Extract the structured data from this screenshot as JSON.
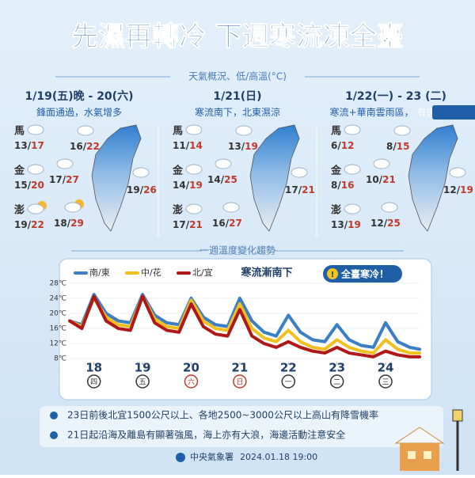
{
  "header": {
    "title": "先濕再轉冷 下週寒流凍全臺",
    "subtitle": "天氣概況、低/高溫(°C)"
  },
  "temp_separator": "/",
  "panels": [
    {
      "date": "1/19(五)晚 - 20(六)",
      "description": "鋒面通過，水氣增多",
      "islands": [
        {
          "name": "馬",
          "low": 13,
          "high": 17
        },
        {
          "name": "金",
          "low": 15,
          "high": 20
        },
        {
          "name": "澎",
          "low": 19,
          "high": 22
        }
      ],
      "map_temps": [
        {
          "low": 16,
          "high": 22
        },
        {
          "low": 17,
          "high": 27
        },
        {
          "low": 19,
          "high": 26
        },
        {
          "low": 18,
          "high": 29
        }
      ]
    },
    {
      "date": "1/21(日)",
      "description": "寒流南下，北東濕涼",
      "islands": [
        {
          "name": "馬",
          "low": 11,
          "high": 14
        },
        {
          "name": "金",
          "low": 14,
          "high": 19
        },
        {
          "name": "澎",
          "low": 17,
          "high": 21
        }
      ],
      "map_temps": [
        {
          "low": 13,
          "high": 19
        },
        {
          "low": 14,
          "high": 25
        },
        {
          "low": 17,
          "high": 21
        },
        {
          "low": 16,
          "high": 27
        }
      ]
    },
    {
      "date": "1/22(一) - 23 (二)",
      "description": "寒流+華南雲雨區，",
      "highlight": "有感轉冷",
      "highlight_suffix": "!",
      "islands": [
        {
          "name": "馬",
          "low": 6,
          "high": 12
        },
        {
          "name": "金",
          "low": 8,
          "high": 16
        },
        {
          "name": "澎",
          "low": 13,
          "high": 19
        }
      ],
      "map_temps": [
        {
          "low": 8,
          "high": 15
        },
        {
          "low": 10,
          "high": 21
        },
        {
          "low": 12,
          "high": 19
        },
        {
          "low": 12,
          "high": 25
        }
      ]
    }
  ],
  "chart_data": {
    "type": "line",
    "section_title": "一週溫度變化趨勢",
    "title": "寒流漸南下",
    "badge": "全臺寒冷！",
    "badge_icon": "!",
    "x": [
      17.5,
      17.75,
      18,
      18.25,
      18.5,
      18.75,
      19,
      19.25,
      19.5,
      19.75,
      20,
      20.25,
      20.5,
      20.75,
      21,
      21.25,
      21.5,
      21.75,
      22,
      22.25,
      22.5,
      22.75,
      23,
      23.25,
      23.5,
      23.75,
      24,
      24.25,
      24.5,
      24.7
    ],
    "xlim": [
      17.5,
      24.7
    ],
    "xticks": [
      18,
      19,
      20,
      21,
      22,
      23,
      24
    ],
    "weekdays": [
      {
        "label": "四",
        "color": "#333333"
      },
      {
        "label": "五",
        "color": "#333333"
      },
      {
        "label": "六",
        "color": "#c0392b"
      },
      {
        "label": "日",
        "color": "#c0392b"
      },
      {
        "label": "一",
        "color": "#333333"
      },
      {
        "label": "二",
        "color": "#333333"
      },
      {
        "label": "三",
        "color": "#333333"
      }
    ],
    "ylim": [
      7,
      29
    ],
    "yticks": [
      {
        "value": 8,
        "label": "8℃"
      },
      {
        "value": 12,
        "label": "12℃"
      },
      {
        "value": 16,
        "label": "16℃"
      },
      {
        "value": 20,
        "label": "20℃"
      },
      {
        "value": 24,
        "label": "24℃"
      },
      {
        "value": 28,
        "label": "28℃"
      }
    ],
    "grid": true,
    "series": [
      {
        "name": "南/東",
        "color": "#3a7fc4",
        "values": [
          18,
          17,
          25,
          20,
          18,
          17.5,
          25,
          19.5,
          17.5,
          17,
          24,
          19,
          17,
          16.5,
          24,
          18,
          15,
          14,
          19.5,
          15,
          13,
          12.5,
          17,
          13,
          11.5,
          11,
          17.5,
          12.5,
          11,
          10.5
        ]
      },
      {
        "name": "中/花",
        "color": "#f2c01e",
        "values": [
          18,
          16.5,
          24,
          19,
          17,
          16.5,
          24.5,
          18.5,
          16.5,
          16,
          23.5,
          18,
          16,
          15.5,
          22.5,
          16,
          13.5,
          12.5,
          15.5,
          12.5,
          11,
          10.5,
          13,
          11,
          10,
          9.5,
          13,
          10.5,
          9.5,
          9.5
        ]
      },
      {
        "name": "北/宜",
        "color": "#b01818",
        "values": [
          18,
          16,
          24.5,
          18,
          16,
          15.5,
          24.5,
          17.5,
          15.5,
          15,
          22.5,
          16.5,
          14.5,
          14,
          21,
          14,
          12,
          11,
          12.5,
          11,
          10,
          9.5,
          11,
          9.5,
          9,
          8.5,
          10,
          9,
          8.5,
          8.5
        ]
      }
    ]
  },
  "notes": [
    "23日前後北宜1500公尺以上、各地2500~3000公尺以上高山有降雪機率",
    "21日起沿海及離島有顯著強風，海上亦有大浪，海邊活動注意安全"
  ],
  "footer": {
    "agency": "中央氣象署",
    "datetime": "2024.01.18 19:00"
  }
}
